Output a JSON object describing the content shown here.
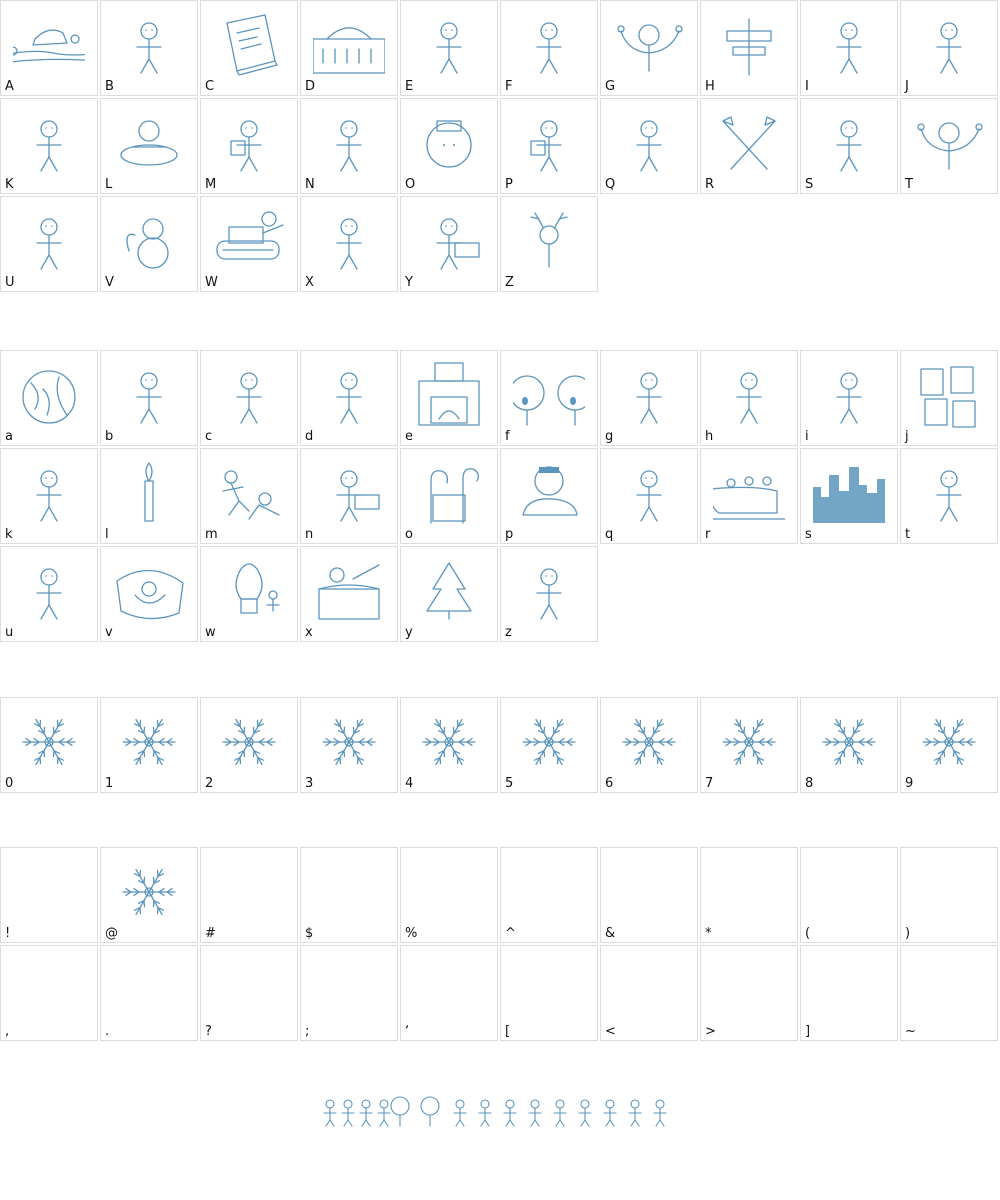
{
  "ink_color": "#5b95bd",
  "sections": [
    {
      "name": "uppercase",
      "rows": [
        [
          {
            "label": "A",
            "icon": "hat-landscape-icon"
          },
          {
            "label": "B",
            "icon": "stick-figure-icon"
          },
          {
            "label": "C",
            "icon": "book-icon"
          },
          {
            "label": "D",
            "icon": "building-icon"
          },
          {
            "label": "E",
            "icon": "stick-figure-icon"
          },
          {
            "label": "F",
            "icon": "stick-figure-icon"
          },
          {
            "label": "G",
            "icon": "figure-arms-up-icon"
          },
          {
            "label": "H",
            "icon": "signpost-icon"
          },
          {
            "label": "I",
            "icon": "stick-figure-icon"
          },
          {
            "label": "J",
            "icon": "stick-figure-icon"
          }
        ],
        [
          {
            "label": "K",
            "icon": "stick-figure-icon"
          },
          {
            "label": "L",
            "icon": "figure-in-tub-icon"
          },
          {
            "label": "M",
            "icon": "figure-holding-icon"
          },
          {
            "label": "N",
            "icon": "stick-figure-icon"
          },
          {
            "label": "O",
            "icon": "round-figure-icon"
          },
          {
            "label": "P",
            "icon": "figure-holding-icon"
          },
          {
            "label": "Q",
            "icon": "stick-figure-icon"
          },
          {
            "label": "R",
            "icon": "crossed-tools-icon"
          },
          {
            "label": "S",
            "icon": "stick-figure-icon"
          },
          {
            "label": "T",
            "icon": "figure-arms-up-icon"
          }
        ],
        [
          {
            "label": "U",
            "icon": "stick-figure-icon"
          },
          {
            "label": "V",
            "icon": "snowman-icon"
          },
          {
            "label": "W",
            "icon": "tank-icon"
          },
          {
            "label": "X",
            "icon": "stick-figure-icon"
          },
          {
            "label": "Y",
            "icon": "figure-with-sign-icon"
          },
          {
            "label": "Z",
            "icon": "reindeer-icon"
          }
        ]
      ]
    },
    {
      "name": "lowercase",
      "rows": [
        [
          {
            "label": "a",
            "icon": "globe-icon"
          },
          {
            "label": "b",
            "icon": "stick-figure-icon"
          },
          {
            "label": "c",
            "icon": "stick-figure-icon"
          },
          {
            "label": "d",
            "icon": "stick-figure-icon"
          },
          {
            "label": "e",
            "icon": "fireplace-icon"
          },
          {
            "label": "f",
            "icon": "big-heads-icon"
          },
          {
            "label": "g",
            "icon": "stick-figure-icon"
          },
          {
            "label": "h",
            "icon": "stick-figure-icon"
          },
          {
            "label": "i",
            "icon": "stick-figure-icon"
          },
          {
            "label": "j",
            "icon": "cards-icon"
          }
        ],
        [
          {
            "label": "k",
            "icon": "stick-figure-icon"
          },
          {
            "label": "l",
            "icon": "candle-icon"
          },
          {
            "label": "m",
            "icon": "figures-playing-icon"
          },
          {
            "label": "n",
            "icon": "figure-with-sign-icon"
          },
          {
            "label": "o",
            "icon": "candy-canes-icon"
          },
          {
            "label": "p",
            "icon": "figure-in-car-icon"
          },
          {
            "label": "q",
            "icon": "stick-figure-icon"
          },
          {
            "label": "r",
            "icon": "sleigh-icon"
          },
          {
            "label": "s",
            "icon": "city-skyline-icon"
          },
          {
            "label": "t",
            "icon": "stick-figure-icon"
          }
        ],
        [
          {
            "label": "u",
            "icon": "stick-figure-icon"
          },
          {
            "label": "v",
            "icon": "angel-icon"
          },
          {
            "label": "w",
            "icon": "light-bulb-icon"
          },
          {
            "label": "x",
            "icon": "stage-icon"
          },
          {
            "label": "y",
            "icon": "christmas-tree-icon"
          },
          {
            "label": "z",
            "icon": "stick-figure-icon"
          }
        ]
      ]
    },
    {
      "name": "digits",
      "rows": [
        [
          {
            "label": "0",
            "icon": "snowflake-icon"
          },
          {
            "label": "1",
            "icon": "snowflake-icon"
          },
          {
            "label": "2",
            "icon": "snowflake-icon"
          },
          {
            "label": "3",
            "icon": "snowflake-icon"
          },
          {
            "label": "4",
            "icon": "snowflake-icon"
          },
          {
            "label": "5",
            "icon": "snowflake-icon"
          },
          {
            "label": "6",
            "icon": "snowflake-icon"
          },
          {
            "label": "7",
            "icon": "snowflake-icon"
          },
          {
            "label": "8",
            "icon": "snowflake-icon"
          },
          {
            "label": "9",
            "icon": "snowflake-icon"
          }
        ]
      ]
    },
    {
      "name": "symbols",
      "rows": [
        [
          {
            "label": "!",
            "icon": ""
          },
          {
            "label": "@",
            "icon": "snowflake-icon"
          },
          {
            "label": "#",
            "icon": ""
          },
          {
            "label": "$",
            "icon": ""
          },
          {
            "label": "%",
            "icon": ""
          },
          {
            "label": "^",
            "icon": ""
          },
          {
            "label": "&",
            "icon": ""
          },
          {
            "label": "*",
            "icon": ""
          },
          {
            "label": "(",
            "icon": ""
          },
          {
            "label": ")",
            "icon": ""
          }
        ],
        [
          {
            "label": ",",
            "icon": ""
          },
          {
            "label": ".",
            "icon": ""
          },
          {
            "label": "?",
            "icon": ""
          },
          {
            "label": ";",
            "icon": ""
          },
          {
            "label": "‘",
            "icon": ""
          },
          {
            "label": "[",
            "icon": ""
          },
          {
            "label": "<",
            "icon": ""
          },
          {
            "label": ">",
            "icon": ""
          },
          {
            "label": "]",
            "icon": ""
          },
          {
            "label": "~",
            "icon": ""
          }
        ]
      ]
    }
  ]
}
